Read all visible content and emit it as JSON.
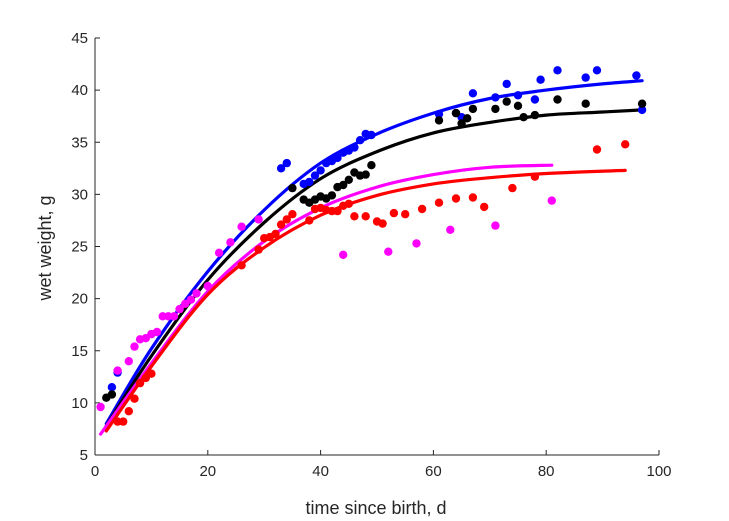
{
  "chart_data": {
    "type": "scatter",
    "title": "",
    "xlabel": "time since birth, d",
    "ylabel": "wet weight, g",
    "xlim": [
      0,
      100
    ],
    "ylim": [
      5,
      45
    ],
    "xticks": [
      0,
      20,
      40,
      60,
      80,
      100
    ],
    "yticks": [
      5,
      10,
      15,
      20,
      25,
      30,
      35,
      40,
      45
    ],
    "grid": false,
    "legend": "none",
    "series": [
      {
        "color": "#0000ff",
        "points": [
          [
            3,
            11.5
          ],
          [
            4,
            12.9
          ],
          [
            33,
            32.5
          ],
          [
            34,
            33
          ],
          [
            37,
            31
          ],
          [
            38,
            31.2
          ],
          [
            39,
            31.8
          ],
          [
            40,
            32.3
          ],
          [
            41,
            33
          ],
          [
            42,
            33.2
          ],
          [
            43,
            33.5
          ],
          [
            44,
            34
          ],
          [
            45,
            34.2
          ],
          [
            46,
            34.5
          ],
          [
            47,
            35.2
          ],
          [
            48,
            35.8
          ],
          [
            49,
            35.7
          ],
          [
            61,
            37.7
          ],
          [
            64,
            37.8
          ],
          [
            65,
            37.4
          ],
          [
            67,
            39.7
          ],
          [
            71,
            39.3
          ],
          [
            73,
            40.6
          ],
          [
            75,
            39.5
          ],
          [
            78,
            39.1
          ],
          [
            79,
            41
          ],
          [
            82,
            41.9
          ],
          [
            87,
            41.2
          ],
          [
            89,
            41.9
          ],
          [
            96,
            41.4
          ],
          [
            97,
            38.1
          ]
        ],
        "fit_x": [
          2,
          10,
          20,
          30,
          40,
          50,
          60,
          70,
          80,
          90,
          97
        ],
        "fit_y": [
          8.0,
          15.2,
          22.6,
          28.5,
          33.0,
          35.8,
          37.8,
          39.2,
          40.0,
          40.6,
          40.9
        ]
      },
      {
        "color": "#000000",
        "points": [
          [
            2,
            10.5
          ],
          [
            3,
            10.8
          ],
          [
            35,
            30.6
          ],
          [
            37,
            29.5
          ],
          [
            38,
            29.2
          ],
          [
            39,
            29.5
          ],
          [
            40,
            29.8
          ],
          [
            41,
            29.6
          ],
          [
            42,
            29.9
          ],
          [
            43,
            30.7
          ],
          [
            44,
            30.9
          ],
          [
            45,
            31.4
          ],
          [
            46,
            32.1
          ],
          [
            47,
            31.8
          ],
          [
            48,
            31.9
          ],
          [
            49,
            32.8
          ],
          [
            61,
            37.1
          ],
          [
            64,
            37.8
          ],
          [
            65,
            36.8
          ],
          [
            66,
            37.3
          ],
          [
            67,
            38.2
          ],
          [
            71,
            38.2
          ],
          [
            73,
            38.9
          ],
          [
            75,
            38.5
          ],
          [
            76,
            37.4
          ],
          [
            78,
            37.6
          ],
          [
            82,
            39.1
          ],
          [
            87,
            38.7
          ],
          [
            97,
            38.7
          ]
        ],
        "fit_x": [
          2,
          10,
          20,
          30,
          40,
          50,
          60,
          70,
          80,
          90,
          97
        ],
        "fit_y": [
          7.8,
          14.5,
          21.8,
          27.3,
          31.5,
          34.1,
          35.9,
          36.9,
          37.6,
          37.9,
          38.1
        ]
      },
      {
        "color": "#ff00ff",
        "points": [
          [
            1,
            9.6
          ],
          [
            4,
            13.1
          ],
          [
            6,
            14
          ],
          [
            7,
            15.4
          ],
          [
            8,
            16.1
          ],
          [
            9,
            16.2
          ],
          [
            10,
            16.6
          ],
          [
            11,
            16.8
          ],
          [
            12,
            18.3
          ],
          [
            13,
            18.3
          ],
          [
            14,
            18.3
          ],
          [
            15,
            19
          ],
          [
            16,
            19.5
          ],
          [
            17,
            19.9
          ],
          [
            18,
            20.5
          ],
          [
            20,
            21.2
          ],
          [
            22,
            24.4
          ],
          [
            24,
            25.4
          ],
          [
            26,
            26.9
          ],
          [
            29,
            27.6
          ],
          [
            44,
            24.2
          ],
          [
            52,
            24.5
          ],
          [
            57,
            25.3
          ],
          [
            63,
            26.6
          ],
          [
            71,
            27
          ],
          [
            81,
            29.4
          ]
        ],
        "fit_x": [
          1,
          10,
          20,
          30,
          40,
          50,
          60,
          70,
          81
        ],
        "fit_y": [
          7.0,
          13.8,
          20.7,
          25.5,
          28.7,
          30.7,
          31.9,
          32.6,
          32.8
        ]
      },
      {
        "color": "#ff0000",
        "points": [
          [
            4,
            8.2
          ],
          [
            5,
            8.2
          ],
          [
            6,
            9.2
          ],
          [
            7,
            10.4
          ],
          [
            8,
            11.9
          ],
          [
            9,
            12.4
          ],
          [
            10,
            12.8
          ],
          [
            26,
            23.2
          ],
          [
            29,
            24.7
          ],
          [
            30,
            25.8
          ],
          [
            31,
            25.9
          ],
          [
            32,
            26.2
          ],
          [
            33,
            27.1
          ],
          [
            34,
            27.6
          ],
          [
            35,
            28.1
          ],
          [
            38,
            27.5
          ],
          [
            39,
            28.6
          ],
          [
            40,
            28.7
          ],
          [
            41,
            28.5
          ],
          [
            42,
            28.4
          ],
          [
            43,
            28.4
          ],
          [
            44,
            28.9
          ],
          [
            45,
            29.1
          ],
          [
            46,
            27.9
          ],
          [
            48,
            27.9
          ],
          [
            50,
            27.4
          ],
          [
            51,
            27.2
          ],
          [
            53,
            28.2
          ],
          [
            55,
            28.1
          ],
          [
            58,
            28.6
          ],
          [
            61,
            29.2
          ],
          [
            64,
            29.6
          ],
          [
            67,
            29.7
          ],
          [
            69,
            28.8
          ],
          [
            74,
            30.6
          ],
          [
            78,
            31.7
          ],
          [
            89,
            34.3
          ],
          [
            94,
            34.8
          ]
        ],
        "fit_x": [
          2,
          10,
          20,
          30,
          40,
          50,
          60,
          70,
          80,
          94
        ],
        "fit_y": [
          7.3,
          13.5,
          20.4,
          24.9,
          28.0,
          29.9,
          31.0,
          31.6,
          32.0,
          32.3
        ]
      }
    ]
  }
}
